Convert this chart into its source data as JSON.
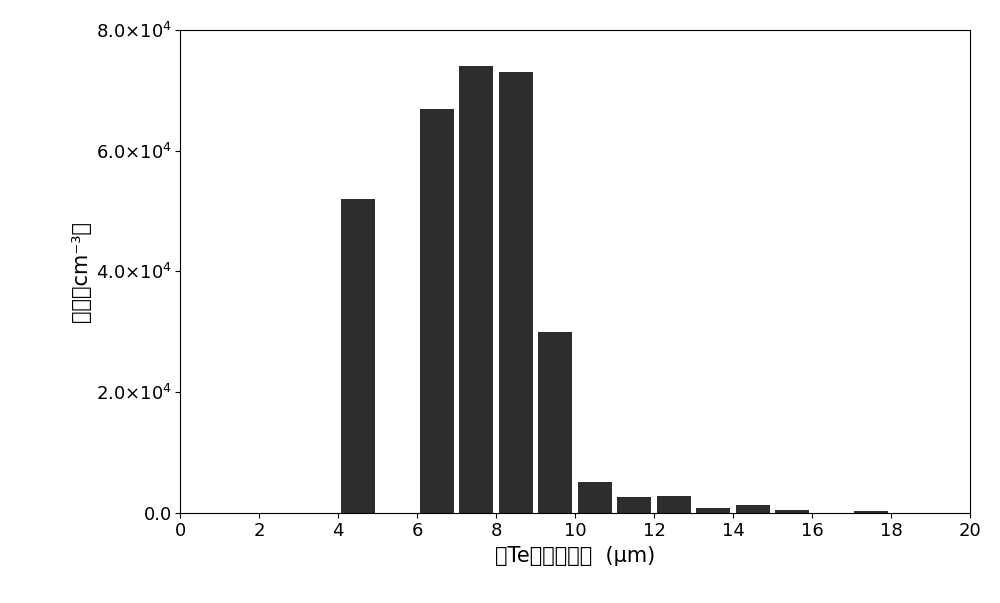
{
  "bar_centers": [
    4.5,
    6.5,
    7.5,
    8.5,
    9.5,
    10.5,
    11.5,
    12.5,
    13.5,
    14.5,
    15.5,
    17.5
  ],
  "bar_values": [
    52000,
    67000,
    74000,
    73000,
    30000,
    5000,
    2500,
    2800,
    800,
    1200,
    400,
    200
  ],
  "bar_width": 0.85,
  "bar_color": "#2d2d2d",
  "xlim": [
    0,
    20
  ],
  "ylim": [
    0,
    80000
  ],
  "xticks": [
    0,
    2,
    4,
    6,
    8,
    10,
    12,
    14,
    16,
    18,
    20
  ],
  "ytick_values": [
    0.0,
    2.0,
    4.0,
    6.0,
    8.0
  ],
  "ytick_exponent": 4,
  "xlabel": "察Te相颗粒尺寸  (μm)",
  "ylabel": "密度（cm⁻³）",
  "background_color": "#ffffff",
  "fig_width": 10.0,
  "fig_height": 6.03
}
